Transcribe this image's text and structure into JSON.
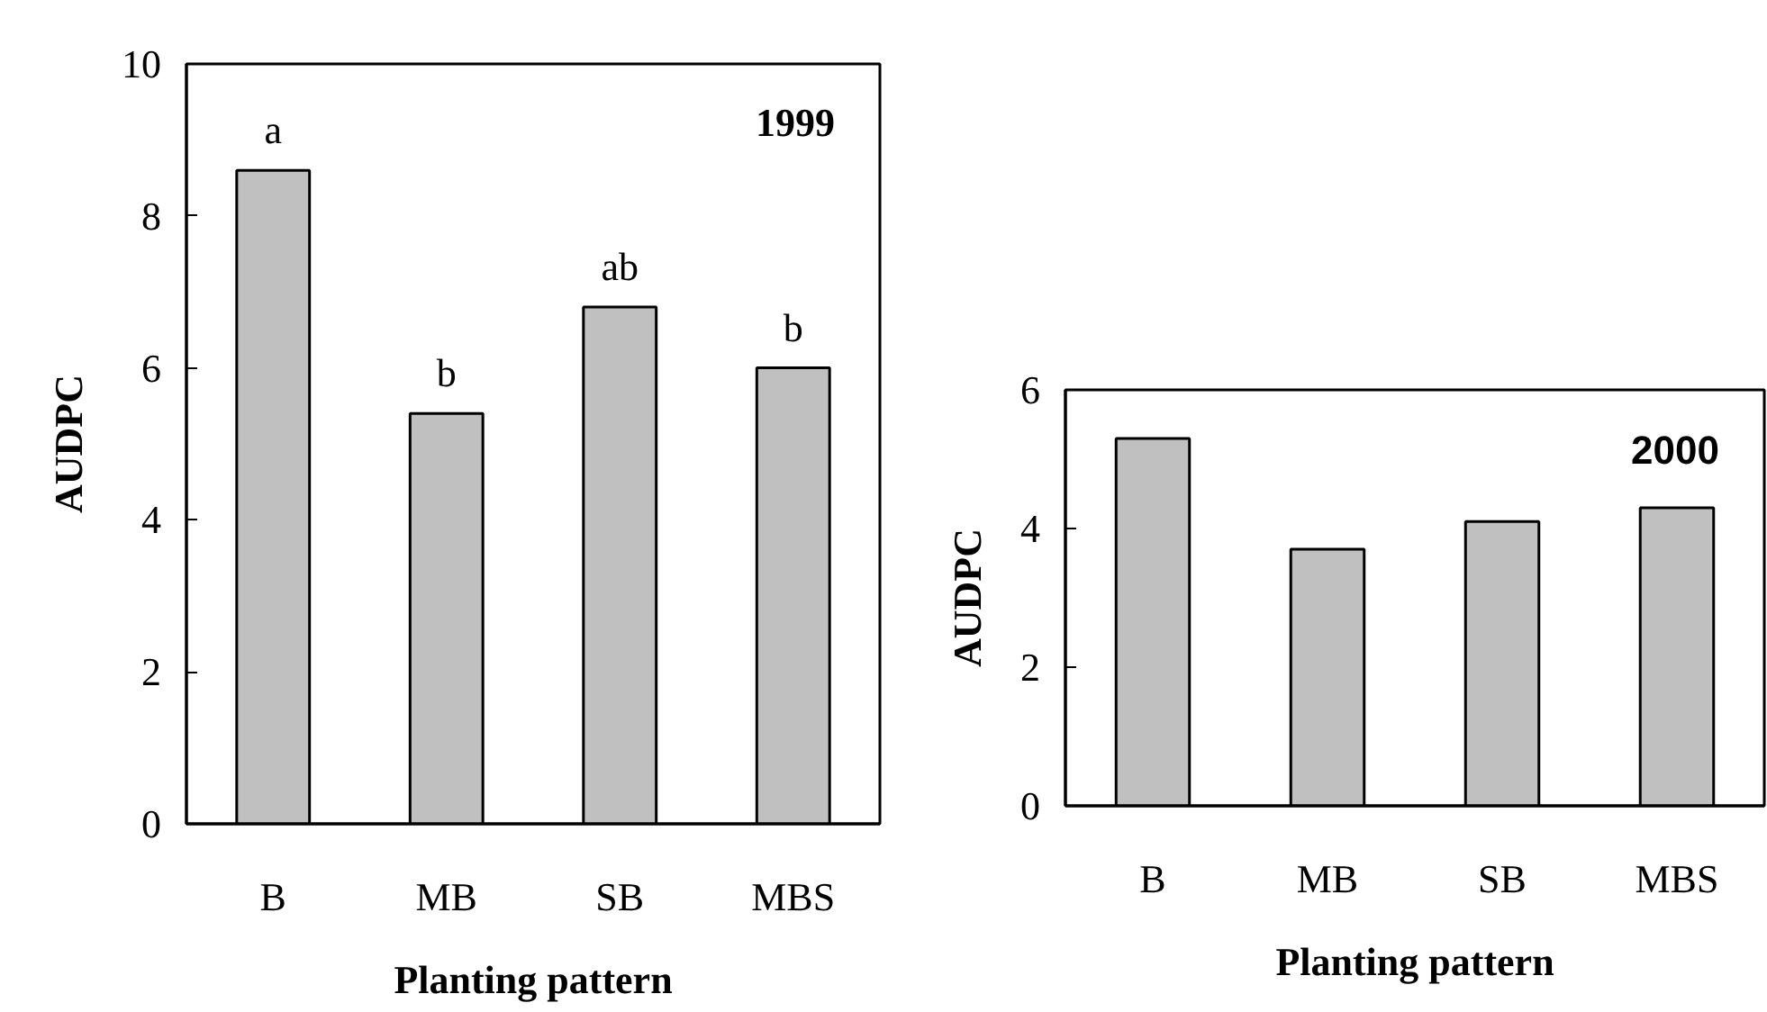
{
  "chart_data": [
    {
      "type": "bar",
      "title": "1999",
      "xlabel": "Planting pattern",
      "ylabel": "AUDPC",
      "categories": [
        "B",
        "MB",
        "SB",
        "MBS"
      ],
      "series": [
        {
          "color": "#c0c0c0",
          "values": [
            8.6,
            5.4,
            6.8,
            6.0
          ]
        }
      ],
      "ylim": [
        0,
        10
      ],
      "yticks": [
        0,
        2,
        4,
        6,
        8,
        10
      ],
      "grid": false,
      "annotations": [
        {
          "text": "a",
          "x": "B",
          "y": 8.6
        },
        {
          "text": "b",
          "x": "MB",
          "y": 5.4
        },
        {
          "text": "ab",
          "x": "SB",
          "y": 6.8
        },
        {
          "text": "b",
          "x": "MBS",
          "y": 6.0
        }
      ]
    },
    {
      "type": "bar",
      "title": "2000",
      "xlabel": "Planting pattern",
      "ylabel": "AUDPC",
      "categories": [
        "B",
        "MB",
        "SB",
        "MBS"
      ],
      "series": [
        {
          "color": "#c0c0c0",
          "values": [
            5.3,
            3.7,
            4.1,
            4.3
          ]
        }
      ],
      "ylim": [
        0,
        6
      ],
      "yticks": [
        0,
        2,
        4,
        6
      ],
      "grid": false
    }
  ]
}
